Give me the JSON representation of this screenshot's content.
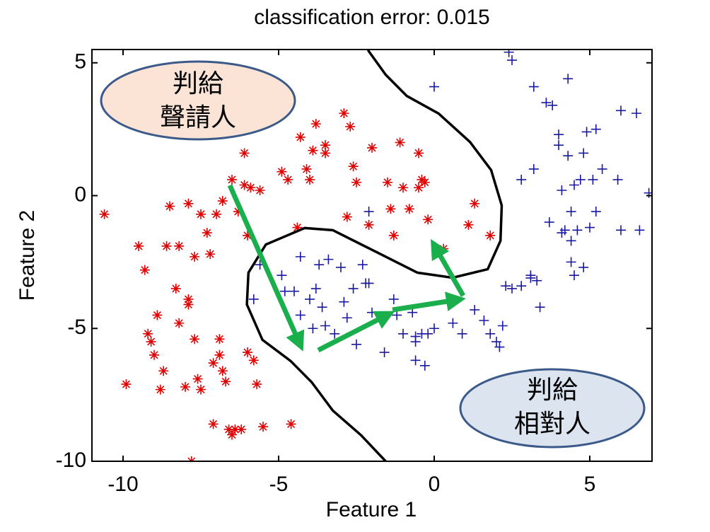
{
  "chart_data": {
    "type": "scatter",
    "title": "classification error: 0.015",
    "x_label": "Feature 1",
    "y_label": "Feature 2",
    "xlim": [
      -11,
      7
    ],
    "ylim": [
      -10,
      5.5
    ],
    "xticks": [
      -10,
      -5,
      0,
      5
    ],
    "yticks": [
      5,
      0,
      -5,
      -10
    ],
    "grid": false,
    "annotations": [
      {
        "lines": [
          "判給",
          "聲請人"
        ]
      },
      {
        "lines": [
          "判給",
          "相對人"
        ]
      }
    ],
    "series": [
      {
        "marker": "asterisk",
        "color": "#e00000",
        "x": [
          -10.6,
          -9.9,
          -9.5,
          -9.3,
          -9.2,
          -9.1,
          -9.0,
          -8.9,
          -8.8,
          -8.7,
          -8.6,
          -8.5,
          -8.3,
          -8.2,
          -8.2,
          -8.0,
          -7.9,
          -7.9,
          -7.9,
          -7.8,
          -7.7,
          -7.7,
          -7.6,
          -7.5,
          -7.5,
          -7.3,
          -7.2,
          -7.1,
          -7.1,
          -7.0,
          -6.9,
          -6.9,
          -6.8,
          -6.8,
          -6.7,
          -6.6,
          -6.5,
          -6.5,
          -6.4,
          -6.3,
          -6.2,
          -6.1,
          -6.1,
          -6.0,
          -6.0,
          -5.9,
          -5.8,
          -5.7,
          -5.6,
          -5.5,
          -4.9,
          -4.7,
          -4.6,
          -4.4,
          -4.3,
          -4.1,
          -4.0,
          -3.9,
          -3.8,
          -3.5,
          -3.5,
          -2.9,
          -2.7,
          -2.8,
          -2.6,
          -2.5,
          -2.1,
          -2.0,
          -1.5,
          -1.4,
          -1.3,
          -1.1,
          -1.0,
          -0.8,
          -0.5,
          -0.5,
          -0.4,
          -0.3,
          -0.2,
          0.3,
          1.3,
          1.1,
          1.8
        ],
        "y": [
          -0.7,
          -7.1,
          -1.9,
          -2.8,
          -5.2,
          -5.5,
          -6.0,
          -4.5,
          -7.3,
          -6.6,
          -1.9,
          -0.4,
          -3.5,
          -4.8,
          -1.9,
          -7.2,
          -0.3,
          -3.9,
          -4.1,
          -10,
          -5.4,
          -2.3,
          -6.9,
          -7.3,
          -0.7,
          -1.4,
          -2.2,
          -6.3,
          -8.6,
          -0.7,
          -6.0,
          -5.4,
          -6.6,
          -0.2,
          -7.0,
          -8.8,
          0.6,
          -9.0,
          -8.8,
          -0.6,
          -8.8,
          1.6,
          0.4,
          -1.5,
          -5.9,
          0.3,
          -6.2,
          -7.1,
          0.2,
          -8.7,
          0.9,
          0.6,
          -8.6,
          -1.2,
          2.2,
          1.0,
          0.6,
          1.7,
          2.7,
          1.6,
          1.9,
          3.1,
          2.6,
          -0.8,
          1.1,
          0.5,
          -1.1,
          1.8,
          0.5,
          -0.5,
          -1.5,
          2.0,
          0.3,
          -0.5,
          1.6,
          0.3,
          0.6,
          0.5,
          -0.9,
          -2.0,
          -0.3,
          -1.1,
          -1.5
        ]
      },
      {
        "marker": "plus",
        "color": "#1a1aa0",
        "x": [
          -5.6,
          -5.8,
          -4.9,
          -4.8,
          -4.5,
          -4.3,
          -4.3,
          -4.0,
          -3.8,
          -3.7,
          -3.6,
          -3.5,
          -3.4,
          -3.2,
          -3.0,
          -2.9,
          -2.8,
          -2.6,
          -2.5,
          -2.3,
          -2.2,
          -2.1,
          -2.0,
          -2.1,
          -1.6,
          -1.3,
          -1.2,
          -1.0,
          -0.7,
          -0.6,
          -0.6,
          -0.6,
          -0.4,
          -0.3,
          0,
          0,
          0.6,
          0.9,
          1.3,
          1.6,
          1.8,
          2.0,
          2.1,
          2.2,
          2.3,
          2.4,
          2.5,
          2.5,
          2.8,
          2.8,
          3.1,
          3.1,
          3.2,
          3.2,
          3.3,
          3.4,
          3.6,
          3.8,
          3.7,
          4.0,
          4.0,
          4.1,
          4.1,
          4.2,
          4.3,
          4.3,
          4.4,
          4.4,
          4.4,
          4.5,
          4.5,
          4.6,
          4.7,
          4.8,
          4.9,
          4.8,
          5.0,
          5.1,
          5.2,
          5.2,
          5.4,
          5.9,
          6.0,
          6.0,
          6.5,
          6.6,
          6.9,
          -0.2,
          -3.9
        ],
        "y": [
          -2.6,
          -3.9,
          -3.0,
          -3.6,
          -3.6,
          -2.3,
          -4.5,
          -3.9,
          -3.5,
          -2.6,
          -4.2,
          -4.9,
          -2.4,
          -5.2,
          -2.7,
          -4.0,
          -4.6,
          -3.5,
          -5.6,
          -2.6,
          -3.3,
          -3.3,
          -4.4,
          -0.6,
          -5.9,
          -3.9,
          -4.5,
          -5.2,
          -4.4,
          -5.3,
          -5.5,
          -6.2,
          -5.2,
          -6.4,
          -5.0,
          4.1,
          -4.8,
          -5.2,
          -4.3,
          -4.7,
          -5.2,
          -5.5,
          -5.7,
          -4.9,
          -3.4,
          5.4,
          5.1,
          -3.5,
          -3.4,
          0.6,
          -3.0,
          -3.1,
          4.1,
          1.0,
          -3.2,
          -4.2,
          3.5,
          3.4,
          -1.0,
          2.3,
          1.9,
          0.2,
          -1.4,
          -1.3,
          1.5,
          4.4,
          -0.6,
          -1.7,
          -2.5,
          0.4,
          -3.0,
          -1.3,
          0.6,
          1.6,
          2.4,
          -2.7,
          -1.2,
          0.6,
          2.5,
          -0.6,
          1.0,
          0.6,
          3.2,
          -1.3,
          3.1,
          -1.3,
          0.1,
          -5.2,
          -5.0
        ]
      },
      {
        "marker": "line",
        "color": "#000000",
        "x": [
          -2.13,
          -1.56,
          -0.88,
          0.14,
          1.15,
          1.83,
          2.17,
          2.13,
          1.72,
          0.59,
          -0.54,
          -1.9,
          -3.26,
          -4.16,
          -5.41,
          -5.97,
          -6.02,
          -5.52,
          -4.62,
          -3.94,
          -3.26,
          -2.35,
          -1.56
        ],
        "y": [
          5.48,
          4.55,
          3.75,
          3.09,
          2.02,
          0.96,
          -0.37,
          -1.7,
          -2.77,
          -3.09,
          -2.9,
          -2.1,
          -1.3,
          -1.22,
          -1.84,
          -2.9,
          -4.1,
          -5.43,
          -6.22,
          -7.02,
          -8.09,
          -9.02,
          -10
        ]
      }
    ]
  }
}
